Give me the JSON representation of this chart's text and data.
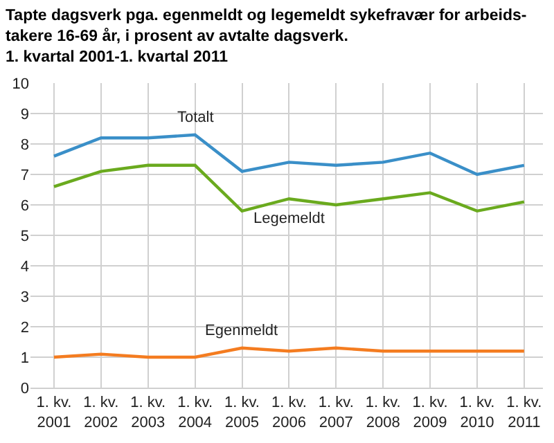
{
  "chart_data": {
    "type": "line",
    "title": "Tapte dagsverk pga. egenmeldt og legemeldt sykefravær for arbeids-\ntakere 16-69 år, i prosent av avtalte dagsverk.\n1. kvartal 2001-1. kvartal 2011",
    "categories": [
      "1. kv.\n2001",
      "1. kv.\n2002",
      "1. kv.\n2003",
      "1. kv.\n2004",
      "1. kv.\n2005",
      "1. kv.\n2006",
      "1. kv.\n2007",
      "1. kv.\n2008",
      "1. kv.\n2009",
      "1. kv.\n2010",
      "1. kv.\n2011"
    ],
    "series": [
      {
        "name": "Totalt",
        "color": "#3a8fc8",
        "values": [
          7.6,
          8.2,
          8.2,
          8.3,
          7.1,
          7.4,
          7.3,
          7.4,
          7.7,
          7.0,
          7.3
        ]
      },
      {
        "name": "Legemeldt",
        "color": "#6aaa1e",
        "values": [
          6.6,
          7.1,
          7.3,
          7.3,
          5.8,
          6.2,
          6.0,
          6.2,
          6.4,
          5.8,
          6.1
        ]
      },
      {
        "name": "Egenmeldt",
        "color": "#f47c20",
        "values": [
          1.0,
          1.1,
          1.0,
          1.0,
          1.3,
          1.2,
          1.3,
          1.2,
          1.2,
          1.2,
          1.2
        ]
      }
    ],
    "ylim": [
      0,
      10
    ],
    "yticks": [
      0,
      1,
      2,
      3,
      4,
      5,
      6,
      7,
      8,
      9,
      10
    ],
    "grid": true,
    "legend": false,
    "marker": "none",
    "line_style": "solid"
  }
}
